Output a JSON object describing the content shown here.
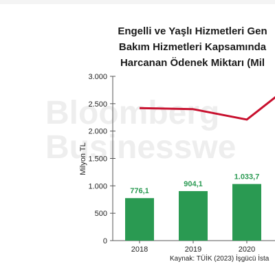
{
  "title_lines": [
    "Engelli ve Yaşlı Hizmetleri Gen",
    "Bakım Hizmetleri Kapsamında",
    "Harcanan Ödenek Miktarı (Mil"
  ],
  "watermark_lines": [
    "Bloomberg",
    "Businesswe"
  ],
  "source": "Kaynak: TÜİK (2023) İşgücü İsta",
  "chart_data": {
    "type": "bar",
    "categories": [
      "2018",
      "2019",
      "2020"
    ],
    "values": [
      776.1,
      904.1,
      1033.7
    ],
    "value_labels": [
      "776,1",
      "904,1",
      "1.033,7"
    ],
    "line_values": [
      2420,
      2400,
      2210
    ],
    "ylabel": "Milyon TL",
    "ylim": [
      0,
      3000
    ],
    "y_ticks": [
      {
        "value": 0,
        "label": "0"
      },
      {
        "value": 500,
        "label": "500"
      },
      {
        "value": 1000,
        "label": "1.000"
      },
      {
        "value": 1500,
        "label": "1.500"
      },
      {
        "value": 2000,
        "label": "2.000"
      },
      {
        "value": 2500,
        "label": "2.500"
      },
      {
        "value": 3000,
        "label": "3.000"
      }
    ],
    "bar_color": "#2a9a52",
    "line_color": "#c8102e",
    "grid": false
  }
}
